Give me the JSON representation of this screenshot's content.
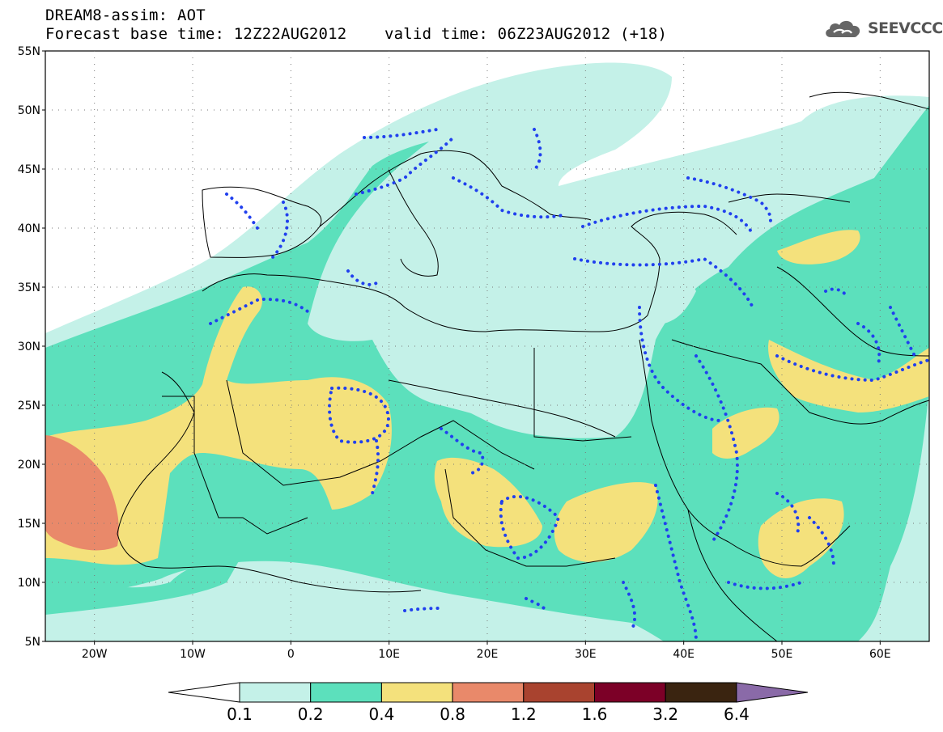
{
  "header": {
    "title": "DREAM8-assim: AOT",
    "base_time_label": "Forecast base time: 12Z22AUG2012",
    "valid_time_label": "valid time: 06Z23AUG2012 (+18)"
  },
  "logo": {
    "text": "SEEVCCC",
    "icon": "cloud-icon"
  },
  "map": {
    "lat_labels": [
      "55N",
      "50N",
      "45N",
      "40N",
      "35N",
      "30N",
      "25N",
      "20N",
      "15N",
      "10N",
      "5N"
    ],
    "lon_labels": [
      "20W",
      "10W",
      "0",
      "10E",
      "20E",
      "30E",
      "40E",
      "50E",
      "60E"
    ],
    "lat_range": [
      5,
      55
    ],
    "lon_range": [
      -25,
      65
    ],
    "gridlines": true
  },
  "colorbar": {
    "labels": [
      "0.1",
      "0.2",
      "0.4",
      "0.8",
      "1.2",
      "1.6",
      "3.2",
      "6.4"
    ],
    "colors": [
      "#ffffff",
      "#c4f1e8",
      "#5ce0bc",
      "#f4e17c",
      "#e9896a",
      "#a9432f",
      "#7c0027",
      "#3a2410",
      "#8a6aa8"
    ]
  },
  "colors": {
    "lightest": "#c4f1e8",
    "light": "#5ce0bc",
    "yellow": "#f4e17c",
    "orange": "#e9896a",
    "dotted_contour": "#2040ee"
  }
}
